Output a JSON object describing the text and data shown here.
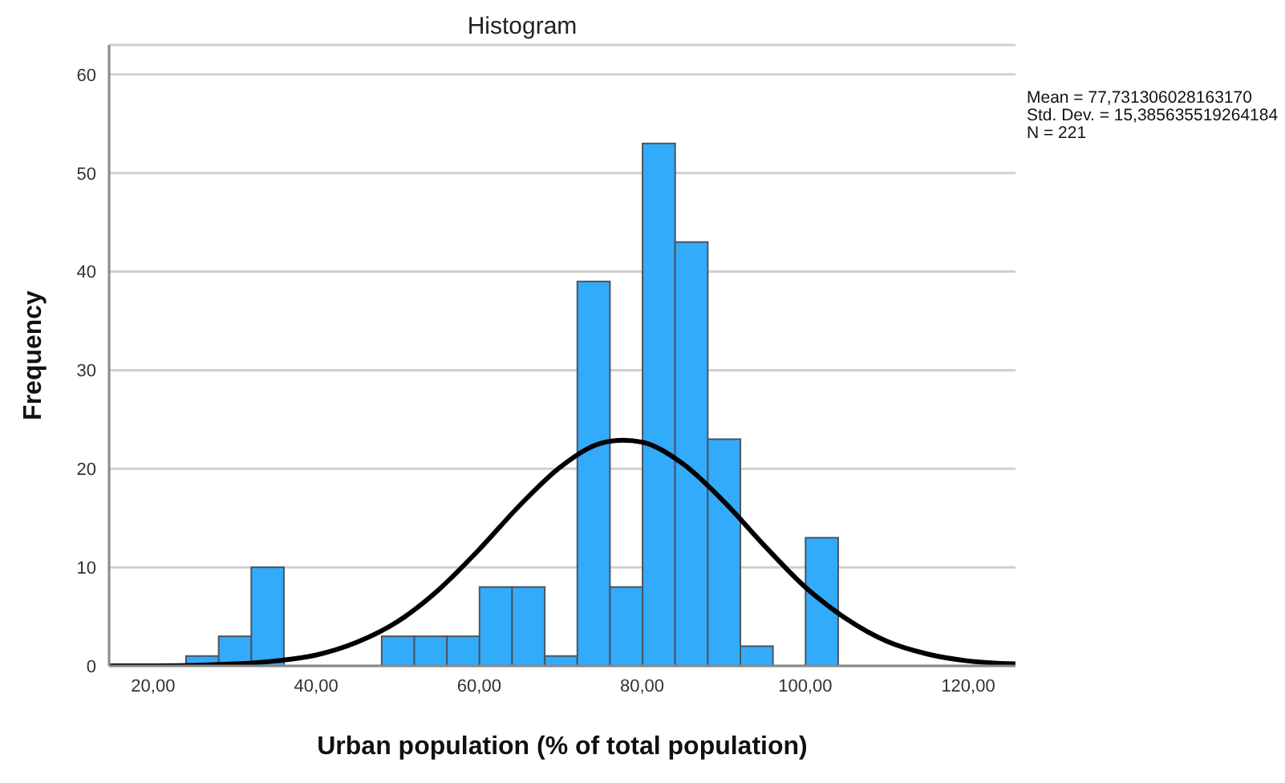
{
  "chart_data": {
    "type": "histogram",
    "title": "Histogram",
    "xlabel": "Urban population (% of total population)",
    "ylabel": "Frequency",
    "bins": [
      24,
      28,
      32,
      36,
      40,
      44,
      48,
      52,
      56,
      60,
      64,
      68,
      72,
      76,
      80,
      84,
      88,
      92,
      96,
      100,
      104
    ],
    "values": [
      1,
      3,
      10,
      0,
      0,
      0,
      3,
      3,
      3,
      8,
      8,
      1,
      39,
      8,
      53,
      43,
      23,
      2,
      0,
      13
    ],
    "color": "#33abfb",
    "series": [
      {
        "type": "line",
        "color": "#000000",
        "x": [
          14.6,
          20,
          30,
          35,
          40,
          45,
          50,
          55,
          60,
          65,
          70,
          75,
          77.7,
          80,
          85,
          90,
          95,
          100,
          105,
          110,
          115,
          120,
          125.8
        ],
        "values": [
          0.0,
          0.0,
          0.2,
          0.5,
          1.1,
          2.4,
          4.5,
          7.7,
          11.8,
          16.3,
          20.2,
          22.6,
          22.9,
          22.7,
          20.5,
          16.7,
          12.2,
          8.0,
          4.8,
          2.5,
          1.2,
          0.5,
          0.2
        ]
      }
    ],
    "xlim": [
      14.6,
      125.8
    ],
    "xticks": [
      {
        "value": 20,
        "label": "20,00"
      },
      {
        "value": 40,
        "label": "40,00"
      },
      {
        "value": 60,
        "label": "60,00"
      },
      {
        "value": 80,
        "label": "80,00"
      },
      {
        "value": 100,
        "label": "100,00"
      },
      {
        "value": 120,
        "label": "120,00"
      }
    ],
    "ylim": [
      0,
      63
    ],
    "yticks": [
      0,
      10,
      20,
      30,
      40,
      50,
      60
    ],
    "grid": "y",
    "marker": "none",
    "annotations": [
      "Mean = 77,731306028163170",
      "Std. Dev. = 15,385635519264184",
      "N = 221"
    ]
  }
}
